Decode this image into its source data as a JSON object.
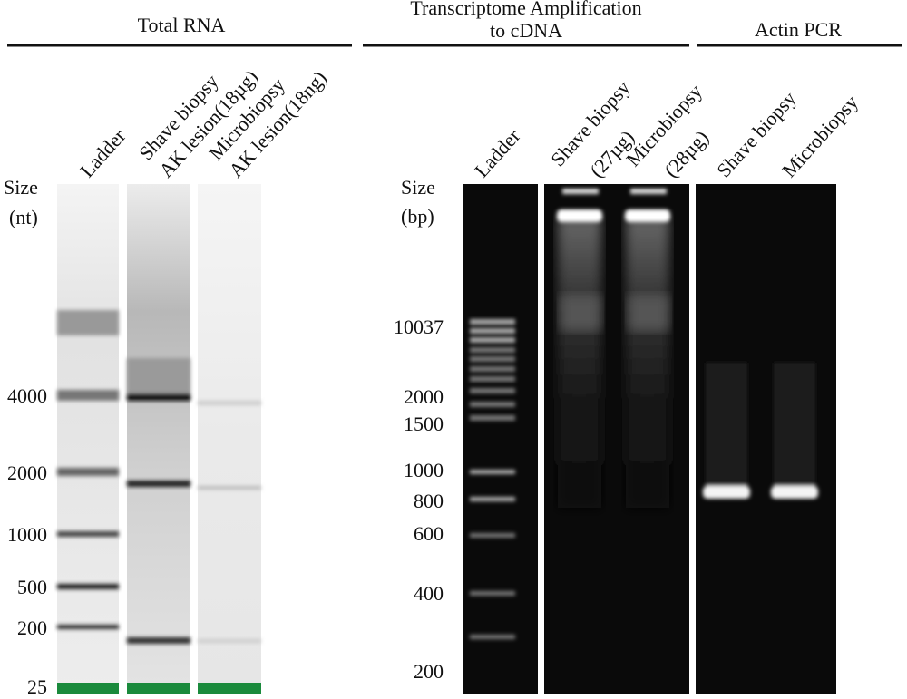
{
  "panels": [
    {
      "title": [
        "Total RNA"
      ],
      "lanes": [
        [
          "Ladder"
        ],
        [
          "Shave biopsy",
          "AK lesion(18µg)"
        ],
        [
          "Microbiopsy",
          "AK lesion(18ng)"
        ]
      ],
      "size_label": [
        "Size",
        "(nt)"
      ],
      "markers": [
        "4000",
        "2000",
        "1000",
        "500",
        "200",
        "25"
      ]
    },
    {
      "title": [
        "Transcriptome Amplification",
        "to cDNA"
      ],
      "lanes": [
        [
          "Ladder"
        ],
        [
          "Shave biopsy",
          "(27µg)"
        ],
        [
          "Microbiopsy",
          "(28µg)"
        ]
      ],
      "size_label": [
        "Size",
        "(bp)"
      ],
      "markers": [
        "10037",
        "2000",
        "1500",
        "1000",
        "800",
        "600",
        "400",
        "200"
      ]
    },
    {
      "title": [
        "Actin PCR"
      ],
      "lanes": [
        [
          "Shave biopsy"
        ],
        [
          "Microbiopsy"
        ]
      ]
    }
  ]
}
